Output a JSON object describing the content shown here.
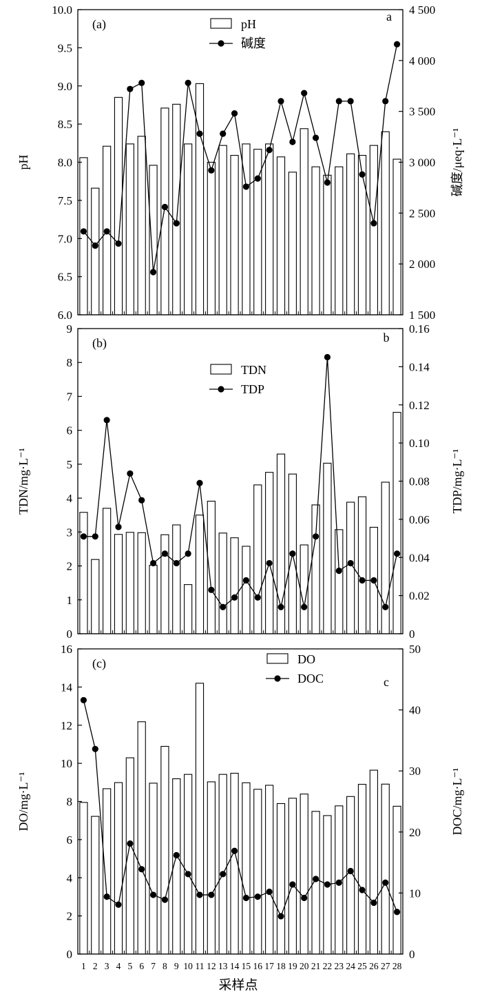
{
  "xlabel": "采样点",
  "chart_data": [
    {
      "type": "bar",
      "panel_label": "(a)",
      "corner_label": "a",
      "categories": [
        "1",
        "2",
        "3",
        "4",
        "5",
        "6",
        "7",
        "8",
        "9",
        "10",
        "11",
        "12",
        "13",
        "14",
        "15",
        "16",
        "17",
        "18",
        "19",
        "20",
        "21",
        "22",
        "23",
        "24",
        "25",
        "26",
        "27",
        "28"
      ],
      "ylabel_left": "pH",
      "ylabel_right": "碱度/μeq·L⁻¹",
      "ylim_left": [
        6.0,
        10.0
      ],
      "ylim_right": [
        1500,
        4500
      ],
      "yticks_left": [
        "6.0",
        "6.5",
        "7.0",
        "7.5",
        "8.0",
        "8.5",
        "9.0",
        "9.5",
        "10.0"
      ],
      "yticks_right": [
        "1 500",
        "2 000",
        "2 500",
        "3 000",
        "3 500",
        "4 000",
        "4 500"
      ],
      "legend": {
        "placement": "top-center",
        "bar_label": "pH",
        "line_label": "碱度"
      },
      "series": [
        {
          "name": "pH",
          "kind": "bar",
          "axis": "left",
          "values": [
            8.06,
            7.66,
            8.21,
            8.85,
            8.24,
            8.34,
            7.96,
            8.71,
            8.76,
            8.24,
            9.03,
            8.0,
            8.22,
            8.09,
            8.24,
            8.17,
            8.24,
            8.07,
            7.87,
            8.44,
            7.94,
            7.83,
            7.94,
            8.11,
            8.09,
            8.22,
            8.4,
            8.04
          ]
        },
        {
          "name": "碱度",
          "kind": "line",
          "axis": "right",
          "values": [
            2320,
            2180,
            2320,
            2200,
            3720,
            3780,
            1920,
            2560,
            2400,
            3780,
            3280,
            2920,
            3280,
            3480,
            2760,
            2840,
            3120,
            3600,
            3200,
            3680,
            3240,
            2800,
            3600,
            3600,
            2880,
            2400,
            3600,
            4160
          ]
        }
      ]
    },
    {
      "type": "bar",
      "panel_label": "(b)",
      "corner_label": "b",
      "categories": [
        "1",
        "2",
        "3",
        "4",
        "5",
        "6",
        "7",
        "8",
        "9",
        "10",
        "11",
        "12",
        "13",
        "14",
        "15",
        "16",
        "17",
        "18",
        "19",
        "20",
        "21",
        "22",
        "23",
        "24",
        "25",
        "26",
        "27",
        "28"
      ],
      "ylabel_left": "TDN/mg·L⁻¹",
      "ylabel_right": "TDP/mg·L⁻¹",
      "ylim_left": [
        0,
        9
      ],
      "ylim_right": [
        0,
        0.16
      ],
      "yticks_left": [
        "0",
        "1",
        "2",
        "3",
        "4",
        "5",
        "6",
        "7",
        "8",
        "9"
      ],
      "yticks_right": [
        "0",
        "0.02",
        "0.04",
        "0.06",
        "0.08",
        "0.10",
        "0.12",
        "0.14",
        "0.16"
      ],
      "legend": {
        "placement": "top-center",
        "bar_label": "TDN",
        "line_label": "TDP"
      },
      "series": [
        {
          "name": "TDN",
          "kind": "bar",
          "axis": "left",
          "values": [
            3.58,
            2.19,
            3.7,
            2.93,
            2.99,
            2.98,
            2.02,
            2.92,
            3.21,
            1.45,
            3.5,
            3.91,
            2.97,
            2.83,
            2.58,
            4.39,
            4.76,
            5.3,
            4.71,
            2.62,
            3.8,
            5.03,
            3.07,
            3.88,
            4.04,
            3.14,
            4.47,
            6.53
          ]
        },
        {
          "name": "TDP",
          "kind": "line",
          "axis": "right",
          "values": [
            0.051,
            0.051,
            0.112,
            0.056,
            0.084,
            0.07,
            0.037,
            0.042,
            0.037,
            0.042,
            0.079,
            0.023,
            0.014,
            0.019,
            0.028,
            0.019,
            0.037,
            0.014,
            0.042,
            0.014,
            0.051,
            0.145,
            0.033,
            0.037,
            0.028,
            0.028,
            0.014,
            0.042
          ]
        }
      ]
    },
    {
      "type": "bar",
      "panel_label": "(c)",
      "corner_label": "c",
      "categories": [
        "1",
        "2",
        "3",
        "4",
        "5",
        "6",
        "7",
        "8",
        "9",
        "10",
        "11",
        "12",
        "13",
        "14",
        "15",
        "16",
        "17",
        "18",
        "19",
        "20",
        "21",
        "22",
        "23",
        "24",
        "25",
        "26",
        "27",
        "28"
      ],
      "ylabel_left": "DO/mg·L⁻¹",
      "ylabel_right": "DOC/mg·L⁻¹",
      "ylim_left": [
        0,
        16
      ],
      "ylim_right": [
        0,
        50
      ],
      "yticks_left": [
        "0",
        "2",
        "4",
        "6",
        "8",
        "10",
        "12",
        "14",
        "16"
      ],
      "yticks_right": [
        "0",
        "10",
        "20",
        "30",
        "40",
        "50"
      ],
      "legend": {
        "placement": "top-right",
        "bar_label": "DO",
        "line_label": "DOC"
      },
      "series": [
        {
          "name": "DO",
          "kind": "bar",
          "axis": "left",
          "values": [
            7.95,
            7.22,
            8.67,
            8.99,
            10.29,
            12.18,
            8.96,
            10.89,
            9.19,
            9.42,
            14.2,
            9.03,
            9.42,
            9.48,
            8.98,
            8.64,
            8.85,
            7.89,
            8.17,
            8.39,
            7.48,
            7.26,
            7.77,
            8.26,
            8.9,
            9.64,
            8.91,
            7.75
          ]
        },
        {
          "name": "DOC",
          "kind": "line",
          "axis": "right",
          "values": [
            41.6,
            33.6,
            9.4,
            8.1,
            18.1,
            13.9,
            9.7,
            8.9,
            16.2,
            13.1,
            9.7,
            9.7,
            13.1,
            16.9,
            9.2,
            9.4,
            10.2,
            6.2,
            11.4,
            9.2,
            12.3,
            11.4,
            11.7,
            13.6,
            10.5,
            8.4,
            11.7,
            6.9
          ]
        }
      ]
    }
  ]
}
